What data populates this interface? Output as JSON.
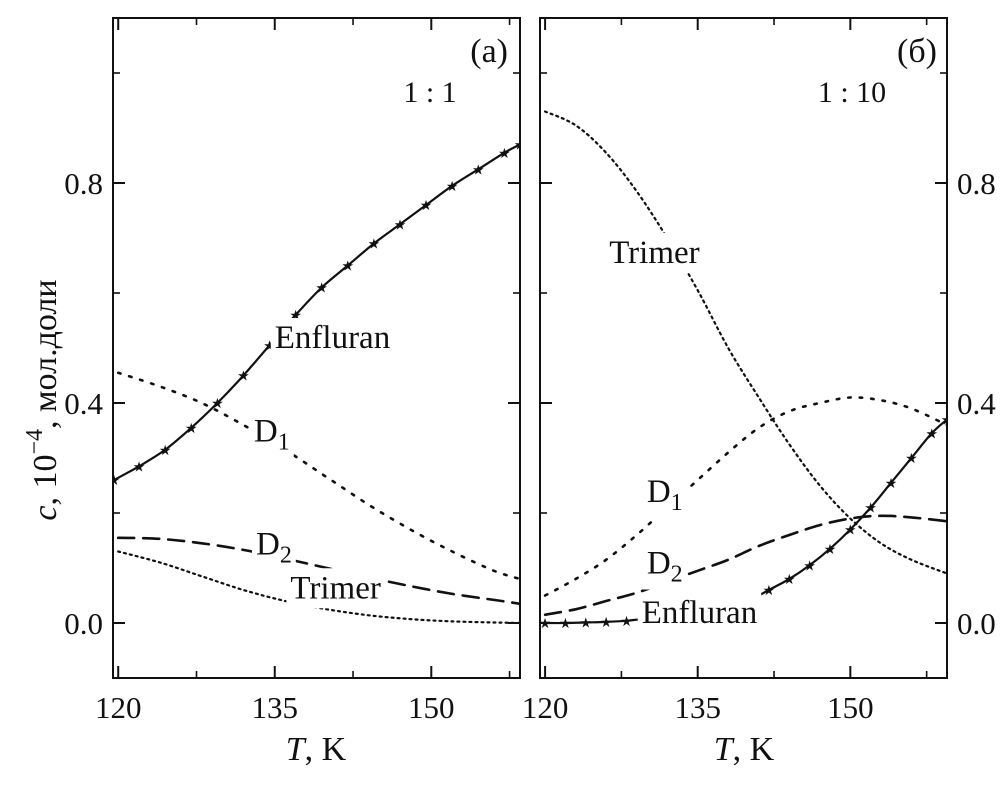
{
  "figure": {
    "ylabel_symbol": "c",
    "ylabel_rest": ", 10",
    "ylabel_exp": "−4",
    "ylabel_units": ", мол.доли",
    "xlabel_symbol": "T",
    "xlabel_rest": ", K"
  },
  "chart_data": [
    {
      "type": "line",
      "panel_label": "(a)",
      "ratio_label": "1 : 1",
      "xlim": [
        119.5,
        158.5
      ],
      "ylim": [
        -0.1,
        1.1
      ],
      "xticks": [
        {
          "value": 120,
          "label": "120"
        },
        {
          "value": 135,
          "label": "135"
        },
        {
          "value": 150,
          "label": "150"
        }
      ],
      "yticks": [
        {
          "value": 0.0,
          "label": "0.0"
        },
        {
          "value": 0.4,
          "label": "0.4"
        },
        {
          "value": 0.8,
          "label": "0.8"
        }
      ],
      "ytick_side": "left",
      "series": [
        {
          "name": "Enfluran",
          "style": "solid-stars",
          "x": [
            119.6,
            122,
            124.5,
            127,
            129.5,
            132,
            134.5,
            137,
            139.5,
            142,
            144.5,
            147,
            149.5,
            152,
            154.5,
            157,
            158.5
          ],
          "y": [
            0.26,
            0.285,
            0.315,
            0.355,
            0.4,
            0.45,
            0.505,
            0.56,
            0.61,
            0.65,
            0.69,
            0.725,
            0.76,
            0.795,
            0.825,
            0.855,
            0.87
          ]
        },
        {
          "name": "D1",
          "name_main": "D",
          "name_sub": "1",
          "style": "dotted-sparse",
          "x": [
            120,
            124,
            128,
            132,
            136,
            140,
            144,
            148,
            152,
            156,
            158.5
          ],
          "y": [
            0.455,
            0.43,
            0.4,
            0.36,
            0.315,
            0.265,
            0.215,
            0.17,
            0.13,
            0.095,
            0.08
          ]
        },
        {
          "name": "D2",
          "name_main": "D",
          "name_sub": "2",
          "style": "dashed",
          "x": [
            120,
            124,
            128,
            132,
            136,
            140,
            144,
            148,
            152,
            156,
            158.5
          ],
          "y": [
            0.155,
            0.153,
            0.145,
            0.133,
            0.117,
            0.1,
            0.083,
            0.067,
            0.053,
            0.042,
            0.035
          ]
        },
        {
          "name": "Trimer",
          "style": "dotted-dense",
          "x": [
            120,
            124,
            128,
            132,
            136,
            140,
            144,
            148,
            152,
            156,
            158.5
          ],
          "y": [
            0.13,
            0.11,
            0.085,
            0.06,
            0.04,
            0.025,
            0.014,
            0.007,
            0.003,
            0.001,
            0.0
          ]
        }
      ],
      "labels": [
        {
          "series": "Enfluran",
          "x": 135,
          "y": 0.5
        },
        {
          "series": "D1",
          "x": 133,
          "y": 0.33
        },
        {
          "series": "D2",
          "x": 133.2,
          "y": 0.125
        },
        {
          "series": "Trimer",
          "x": 136.5,
          "y": 0.045
        }
      ]
    },
    {
      "type": "line",
      "panel_label": "(б)",
      "ratio_label": "1 : 10",
      "xlim": [
        119.5,
        159.5
      ],
      "ylim": [
        -0.1,
        1.1
      ],
      "xticks": [
        {
          "value": 120,
          "label": "120"
        },
        {
          "value": 135,
          "label": "135"
        },
        {
          "value": 150,
          "label": "150"
        }
      ],
      "yticks": [
        {
          "value": 0.0,
          "label": "0.0"
        },
        {
          "value": 0.4,
          "label": "0.4"
        },
        {
          "value": 0.8,
          "label": "0.8"
        }
      ],
      "ytick_side": "right",
      "series": [
        {
          "name": "Trimer",
          "style": "dotted-dense",
          "x": [
            120,
            123,
            126,
            129,
            132,
            135,
            138,
            141,
            144,
            147,
            150,
            153,
            156,
            159.5
          ],
          "y": [
            0.93,
            0.905,
            0.855,
            0.785,
            0.7,
            0.605,
            0.5,
            0.41,
            0.325,
            0.25,
            0.19,
            0.145,
            0.115,
            0.09
          ]
        },
        {
          "name": "D1",
          "name_main": "D",
          "name_sub": "1",
          "style": "dotted-sparse",
          "x": [
            120,
            123,
            126,
            129,
            132,
            135,
            138,
            141,
            144,
            147,
            150,
            153,
            156,
            159.5
          ],
          "y": [
            0.05,
            0.08,
            0.115,
            0.16,
            0.21,
            0.26,
            0.31,
            0.355,
            0.385,
            0.4,
            0.41,
            0.405,
            0.39,
            0.36
          ]
        },
        {
          "name": "D2",
          "name_main": "D",
          "name_sub": "2",
          "style": "dashed",
          "x": [
            120,
            123,
            126,
            129,
            132,
            135,
            138,
            141,
            144,
            147,
            150,
            153,
            156,
            159.5
          ],
          "y": [
            0.015,
            0.025,
            0.04,
            0.055,
            0.075,
            0.095,
            0.115,
            0.14,
            0.16,
            0.178,
            0.19,
            0.195,
            0.192,
            0.185
          ]
        },
        {
          "name": "Enfluran",
          "style": "solid-stars",
          "x": [
            120,
            122,
            124,
            126,
            128,
            130,
            132,
            134,
            136,
            138,
            140,
            142,
            144,
            146,
            148,
            150,
            152,
            154,
            156,
            158,
            159.5
          ],
          "y": [
            0.0,
            0.0,
            0.001,
            0.002,
            0.004,
            0.007,
            0.0,
            0.0,
            0.0,
            0.02,
            0.04,
            0.06,
            0.08,
            0.105,
            0.135,
            0.17,
            0.21,
            0.255,
            0.3,
            0.345,
            0.37
          ]
        }
      ],
      "labels": [
        {
          "series": "Trimer",
          "x": 126.3,
          "y": 0.655
        },
        {
          "series": "D1",
          "x": 130,
          "y": 0.22
        },
        {
          "series": "D2",
          "x": 130,
          "y": 0.09
        },
        {
          "series": "Enfluran",
          "x": 129.5,
          "y": 0.0
        }
      ]
    }
  ]
}
